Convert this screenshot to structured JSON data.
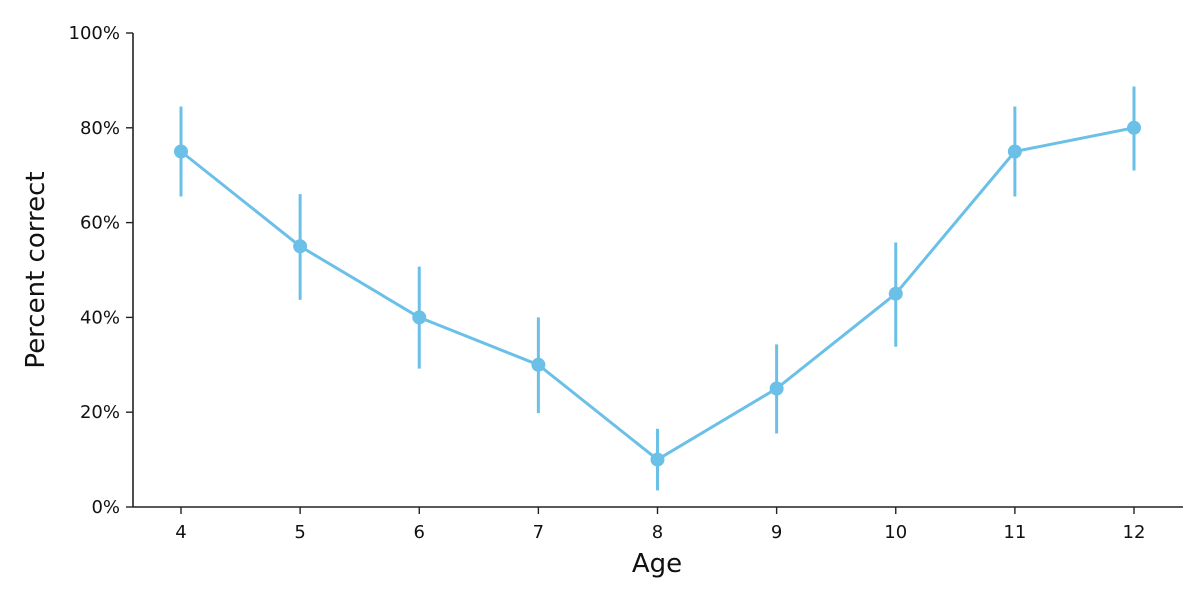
{
  "chart_data": {
    "type": "line",
    "title": "",
    "xlabel": "Age",
    "ylabel": "Percent correct",
    "x": [
      4,
      5,
      6,
      7,
      8,
      9,
      10,
      11,
      12
    ],
    "x_tick_labels": [
      "4",
      "5",
      "6",
      "7",
      "8",
      "9",
      "10",
      "11",
      "12"
    ],
    "ylim": [
      0,
      100
    ],
    "y_ticks": [
      0,
      20,
      40,
      60,
      80,
      100
    ],
    "y_tick_labels": [
      "0%",
      "20%",
      "40%",
      "60%",
      "80%",
      "100%"
    ],
    "grid": false,
    "legend": "none",
    "series": [
      {
        "color": "#6bc0e8",
        "values": [
          75,
          55,
          40,
          30,
          10,
          25,
          45,
          75,
          80
        ],
        "error_low": [
          65.5,
          43.7,
          29.2,
          19.8,
          3.5,
          15.5,
          33.8,
          65.5,
          71
        ],
        "error_high": [
          84.5,
          66,
          50.7,
          40,
          16.5,
          34.3,
          55.8,
          84.5,
          88.7
        ]
      }
    ]
  }
}
